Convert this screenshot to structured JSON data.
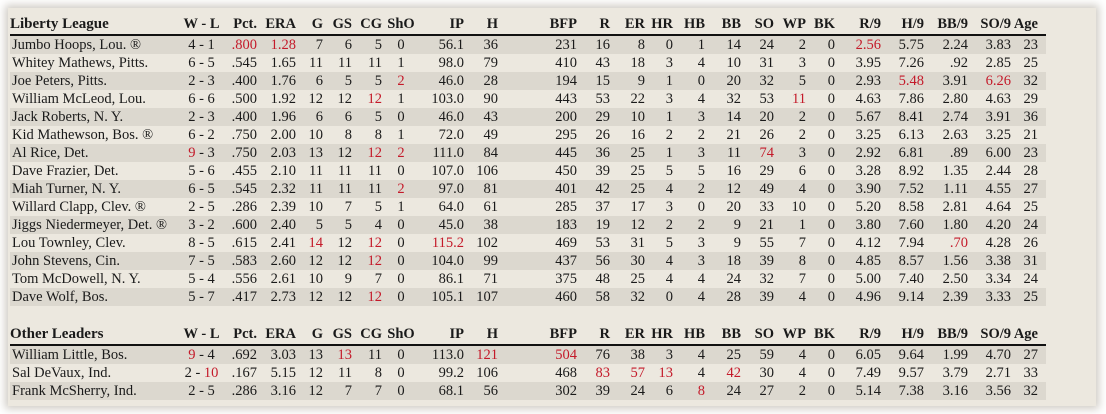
{
  "colors": {
    "highlight": "#c41a2a",
    "row_alt": "#dcd8cf",
    "background": "#ece8df"
  },
  "columns": [
    "W - L",
    "Pct.",
    "ERA",
    "G",
    "GS",
    "CG",
    "ShO",
    "IP",
    "H",
    "BFP",
    "R",
    "ER",
    "HR",
    "HB",
    "BB",
    "SO",
    "WP",
    "BK",
    "R/9",
    "H/9",
    "BB/9",
    "SO/9",
    "Age"
  ],
  "keys": [
    "Pct",
    "ERA",
    "G",
    "GS",
    "CG",
    "ShO",
    "IP",
    "H",
    "BFP",
    "R",
    "ER",
    "HR",
    "HB",
    "BB",
    "SO",
    "WP",
    "BK",
    "R9",
    "H9",
    "BB9",
    "SO9",
    "Age"
  ],
  "sections": [
    {
      "title": "Liberty League",
      "rows": [
        {
          "name": "Jumbo Hoops, Lou. ®",
          "W": "4",
          "L": "1",
          "vals": [
            ".800",
            "1.28",
            "7",
            "6",
            "5",
            "0",
            "56.1",
            "36",
            "231",
            "16",
            "8",
            "0",
            "1",
            "14",
            "24",
            "2",
            "0",
            "2.56",
            "5.75",
            "2.24",
            "3.83",
            "23"
          ],
          "red": [
            "Pct",
            "ERA",
            "R9"
          ]
        },
        {
          "name": "Whitey Mathews, Pitts.",
          "W": "6",
          "L": "5",
          "vals": [
            ".545",
            "1.65",
            "11",
            "11",
            "11",
            "1",
            "98.0",
            "79",
            "410",
            "43",
            "18",
            "3",
            "4",
            "10",
            "31",
            "3",
            "0",
            "3.95",
            "7.26",
            ".92",
            "2.85",
            "25"
          ],
          "red": []
        },
        {
          "name": "Joe Peters, Pitts.",
          "W": "2",
          "L": "3",
          "vals": [
            ".400",
            "1.76",
            "6",
            "5",
            "5",
            "2",
            "46.0",
            "28",
            "194",
            "15",
            "9",
            "1",
            "0",
            "20",
            "32",
            "5",
            "0",
            "2.93",
            "5.48",
            "3.91",
            "6.26",
            "32"
          ],
          "red": [
            "ShO",
            "H9",
            "SO9"
          ]
        },
        {
          "name": "William McLeod, Lou.",
          "W": "6",
          "L": "6",
          "vals": [
            ".500",
            "1.92",
            "12",
            "12",
            "12",
            "1",
            "103.0",
            "90",
            "443",
            "53",
            "22",
            "3",
            "4",
            "32",
            "53",
            "11",
            "0",
            "4.63",
            "7.86",
            "2.80",
            "4.63",
            "29"
          ],
          "red": [
            "CG",
            "WP"
          ]
        },
        {
          "name": "Jack Roberts, N. Y.",
          "W": "2",
          "L": "3",
          "vals": [
            ".400",
            "1.96",
            "6",
            "6",
            "5",
            "0",
            "46.0",
            "43",
            "200",
            "29",
            "10",
            "1",
            "3",
            "14",
            "20",
            "2",
            "0",
            "5.67",
            "8.41",
            "2.74",
            "3.91",
            "36"
          ],
          "red": []
        },
        {
          "name": "Kid Mathewson, Bos. ®",
          "W": "6",
          "L": "2",
          "vals": [
            ".750",
            "2.00",
            "10",
            "8",
            "8",
            "1",
            "72.0",
            "49",
            "295",
            "26",
            "16",
            "2",
            "2",
            "21",
            "26",
            "2",
            "0",
            "3.25",
            "6.13",
            "2.63",
            "3.25",
            "21"
          ],
          "red": []
        },
        {
          "name": "Al Rice, Det.",
          "W": "9",
          "L": "3",
          "vals": [
            ".750",
            "2.03",
            "13",
            "12",
            "12",
            "2",
            "111.0",
            "84",
            "445",
            "36",
            "25",
            "1",
            "3",
            "11",
            "74",
            "3",
            "0",
            "2.92",
            "6.81",
            ".89",
            "6.00",
            "23"
          ],
          "red": [
            "W",
            "CG",
            "ShO",
            "SO"
          ]
        },
        {
          "name": "Dave Frazier, Det.",
          "W": "5",
          "L": "6",
          "vals": [
            ".455",
            "2.10",
            "11",
            "11",
            "11",
            "0",
            "107.0",
            "106",
            "450",
            "39",
            "25",
            "5",
            "5",
            "16",
            "29",
            "6",
            "0",
            "3.28",
            "8.92",
            "1.35",
            "2.44",
            "28"
          ],
          "red": []
        },
        {
          "name": "Miah Turner, N. Y.",
          "W": "6",
          "L": "5",
          "vals": [
            ".545",
            "2.32",
            "11",
            "11",
            "11",
            "2",
            "97.0",
            "81",
            "401",
            "42",
            "25",
            "4",
            "2",
            "12",
            "49",
            "4",
            "0",
            "3.90",
            "7.52",
            "1.11",
            "4.55",
            "27"
          ],
          "red": [
            "ShO"
          ]
        },
        {
          "name": "Willard Clapp, Clev. ®",
          "W": "2",
          "L": "5",
          "vals": [
            ".286",
            "2.39",
            "10",
            "7",
            "5",
            "1",
            "64.0",
            "61",
            "285",
            "37",
            "17",
            "3",
            "0",
            "20",
            "33",
            "10",
            "0",
            "5.20",
            "8.58",
            "2.81",
            "4.64",
            "25"
          ],
          "red": []
        },
        {
          "name": "Jiggs Niedermeyer, Det. ®",
          "W": "3",
          "L": "2",
          "vals": [
            ".600",
            "2.40",
            "5",
            "5",
            "4",
            "0",
            "45.0",
            "38",
            "183",
            "19",
            "12",
            "2",
            "2",
            "9",
            "21",
            "1",
            "0",
            "3.80",
            "7.60",
            "1.80",
            "4.20",
            "24"
          ],
          "red": []
        },
        {
          "name": "Lou Townley, Clev.",
          "W": "8",
          "L": "5",
          "vals": [
            ".615",
            "2.41",
            "14",
            "12",
            "12",
            "0",
            "115.2",
            "102",
            "469",
            "53",
            "31",
            "5",
            "3",
            "9",
            "55",
            "7",
            "0",
            "4.12",
            "7.94",
            ".70",
            "4.28",
            "26"
          ],
          "red": [
            "G",
            "CG",
            "IP",
            "BB9"
          ]
        },
        {
          "name": "John Stevens, Cin.",
          "W": "7",
          "L": "5",
          "vals": [
            ".583",
            "2.60",
            "12",
            "12",
            "12",
            "0",
            "104.0",
            "99",
            "437",
            "56",
            "30",
            "4",
            "3",
            "18",
            "39",
            "8",
            "0",
            "4.85",
            "8.57",
            "1.56",
            "3.38",
            "31"
          ],
          "red": [
            "CG"
          ]
        },
        {
          "name": "Tom McDowell, N. Y.",
          "W": "5",
          "L": "4",
          "vals": [
            ".556",
            "2.61",
            "10",
            "9",
            "7",
            "0",
            "86.1",
            "71",
            "375",
            "48",
            "25",
            "4",
            "4",
            "24",
            "32",
            "7",
            "0",
            "5.00",
            "7.40",
            "2.50",
            "3.34",
            "24"
          ],
          "red": []
        },
        {
          "name": "Dave Wolf, Bos.",
          "W": "5",
          "L": "7",
          "vals": [
            ".417",
            "2.73",
            "12",
            "12",
            "12",
            "0",
            "105.1",
            "107",
            "460",
            "58",
            "32",
            "0",
            "4",
            "28",
            "39",
            "4",
            "0",
            "4.96",
            "9.14",
            "2.39",
            "3.33",
            "25"
          ],
          "red": [
            "CG"
          ]
        }
      ]
    },
    {
      "title": "Other Leaders",
      "rows": [
        {
          "name": "William Little, Bos.",
          "W": "9",
          "L": "4",
          "vals": [
            ".692",
            "3.03",
            "13",
            "13",
            "11",
            "0",
            "113.0",
            "121",
            "504",
            "76",
            "38",
            "3",
            "4",
            "25",
            "59",
            "4",
            "0",
            "6.05",
            "9.64",
            "1.99",
            "4.70",
            "27"
          ],
          "red": [
            "W",
            "GS",
            "H",
            "BFP"
          ]
        },
        {
          "name": "Sal DeVaux, Ind.",
          "W": "2",
          "L": "10",
          "vals": [
            ".167",
            "5.15",
            "12",
            "11",
            "8",
            "0",
            "99.2",
            "106",
            "468",
            "83",
            "57",
            "13",
            "4",
            "42",
            "30",
            "4",
            "0",
            "7.49",
            "9.57",
            "3.79",
            "2.71",
            "33"
          ],
          "red": [
            "L",
            "R",
            "ER",
            "HR",
            "BB"
          ]
        },
        {
          "name": "Frank McSherry, Ind.",
          "W": "2",
          "L": "5",
          "vals": [
            ".286",
            "3.16",
            "12",
            "7",
            "7",
            "0",
            "68.1",
            "56",
            "302",
            "39",
            "24",
            "6",
            "8",
            "24",
            "27",
            "2",
            "0",
            "5.14",
            "7.38",
            "3.16",
            "3.56",
            "32"
          ],
          "red": [
            "HB"
          ]
        }
      ]
    }
  ]
}
